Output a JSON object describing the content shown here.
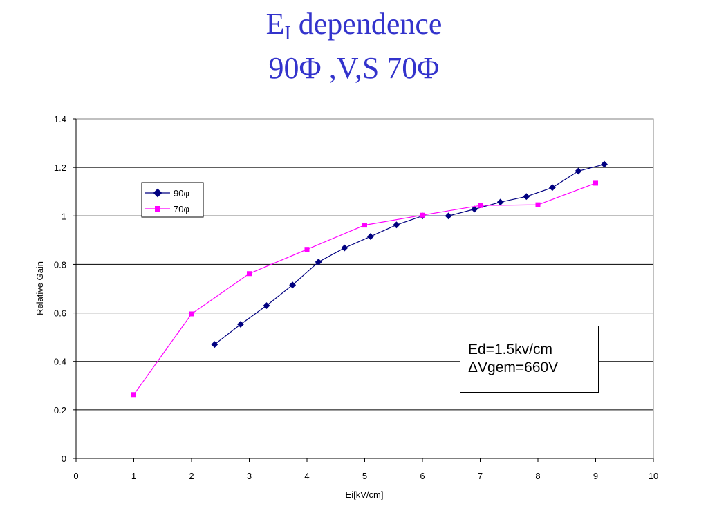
{
  "title": {
    "line1_main": "E",
    "line1_sub": "I",
    "line1_rest": " dependence",
    "line2": "90Φ ,V,S 70Φ"
  },
  "annotation": {
    "line1": "Ed=1.5kv/cm",
    "line2": "ΔVgem=660V"
  },
  "colors": {
    "title": "#3333cc",
    "series_90": "#000080",
    "series_70": "#ff00ff"
  },
  "chart_data": {
    "type": "line",
    "xlabel": "Ei[kV/cm]",
    "ylabel": "Relative Gain",
    "xlim": [
      0,
      10
    ],
    "ylim": [
      0,
      1.4
    ],
    "xticks": [
      "0",
      "1",
      "2",
      "3",
      "4",
      "5",
      "6",
      "7",
      "8",
      "9",
      "10"
    ],
    "yticks": [
      "0",
      "0.2",
      "0.4",
      "0.6",
      "0.8",
      "1",
      "1.2",
      "1.4"
    ],
    "grid": "horizontal",
    "legend_position": "top-left",
    "series": [
      {
        "name": "90φ",
        "marker": "diamond",
        "color": "#000080",
        "x": [
          2.4,
          2.85,
          3.3,
          3.75,
          4.2,
          4.65,
          5.1,
          5.55,
          6.0,
          6.45,
          6.9,
          7.35,
          7.8,
          8.25,
          8.7,
          9.15
        ],
        "y": [
          0.47,
          0.553,
          0.63,
          0.715,
          0.81,
          0.868,
          0.915,
          0.963,
          1.0,
          1.0,
          1.028,
          1.057,
          1.08,
          1.117,
          1.185,
          1.213
        ]
      },
      {
        "name": "70φ",
        "marker": "square",
        "color": "#ff00ff",
        "x": [
          1,
          2,
          3,
          4,
          5,
          6,
          7,
          8,
          9
        ],
        "y": [
          0.263,
          0.596,
          0.762,
          0.862,
          0.962,
          1.003,
          1.043,
          1.046,
          1.135
        ]
      }
    ]
  }
}
